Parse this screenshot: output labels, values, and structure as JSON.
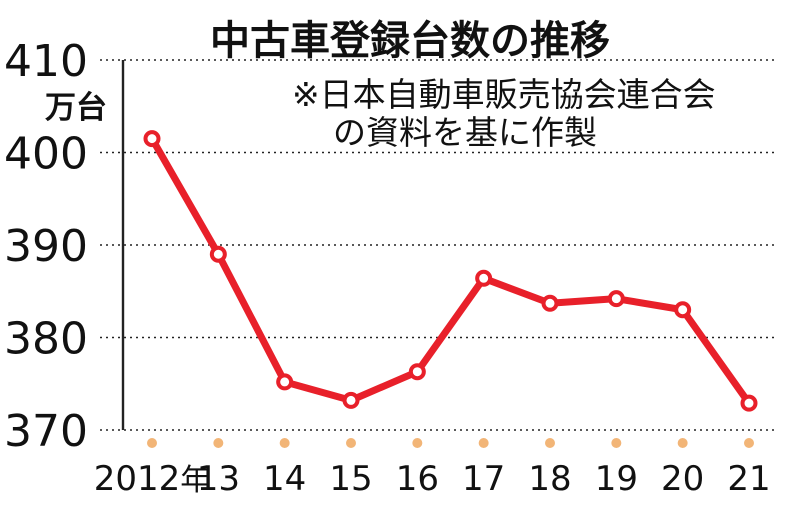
{
  "chart_data": {
    "type": "line",
    "title": "中古車登録台数の推移",
    "source_note": [
      "※日本自動車販売協会連合会",
      "の資料を基に作製"
    ],
    "unit_label": "万台",
    "xlabel": "",
    "ylabel": "",
    "categories": [
      "2012年",
      "13",
      "14",
      "15",
      "16",
      "17",
      "18",
      "19",
      "20",
      "21"
    ],
    "series": [
      {
        "values": [
          401.5,
          389.0,
          375.2,
          373.2,
          376.3,
          386.4,
          383.7,
          384.2,
          383.0,
          372.9
        ]
      }
    ],
    "ylim": [
      370,
      410
    ],
    "yticks": [
      370,
      380,
      390,
      400,
      410
    ],
    "grid": true,
    "colors": {
      "line": "#e8202a",
      "x_marker": "#f2b577",
      "axis": "#222222"
    }
  }
}
